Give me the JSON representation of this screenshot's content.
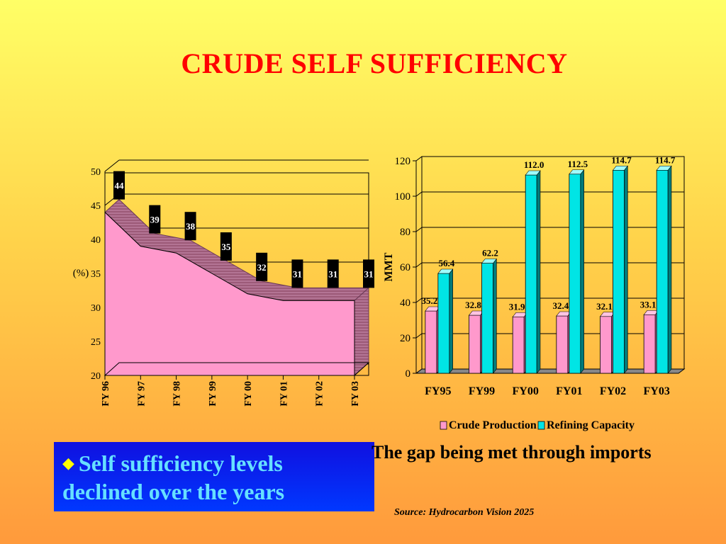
{
  "title": "CRUDE SELF SUFFICIENCY",
  "callout": {
    "bullet": "◆",
    "text": "Self sufficiency levels declined over the years"
  },
  "gap_note": "The gap being met through imports",
  "source": "Source: Hydrocarbon Vision 2025",
  "colors": {
    "title": "#ff0000",
    "area_fill": "#ff99cc",
    "area_band": "#9c5a78",
    "label_box": "#000000",
    "crude": "#ff99cc",
    "refining": "#00e5e5",
    "callout_bg": "#1010e0",
    "callout_text": "#66e0ff"
  },
  "chart_data": [
    {
      "type": "area",
      "ylabel": "(%)",
      "categories": [
        "FY 96",
        "FY 97",
        "FY 98",
        "FY 99",
        "FY 00",
        "FY 01",
        "FY 02",
        "FY 03"
      ],
      "values": [
        44,
        39,
        38,
        35,
        32,
        31,
        31,
        31
      ],
      "data_labels": [
        "44",
        "39",
        "38",
        "35",
        "32",
        "31",
        "31",
        "31"
      ],
      "yticks": [
        "20",
        "25",
        "30",
        "35",
        "40",
        "45",
        "50"
      ],
      "ylim": [
        20,
        50
      ],
      "grid": true,
      "style": "3d"
    },
    {
      "type": "bar",
      "ylabel": "MMT",
      "categories": [
        "FY95",
        "FY99",
        "FY00",
        "FY01",
        "FY02",
        "FY03"
      ],
      "series": [
        {
          "name": "Crude Production",
          "values": [
            35.2,
            32.8,
            31.9,
            32.4,
            32.1,
            33.1
          ],
          "labels": [
            "35.2",
            "32.8",
            "31.9",
            "32.4",
            "32.1",
            "33.1"
          ]
        },
        {
          "name": "Refining Capacity",
          "values": [
            56.4,
            62.2,
            112.0,
            112.5,
            114.7,
            114.7
          ],
          "labels": [
            "56.4",
            "62.2",
            "112.0",
            "112.5",
            "114.7",
            "114.7"
          ]
        }
      ],
      "yticks": [
        "0",
        "20",
        "40",
        "60",
        "80",
        "100",
        "120"
      ],
      "ylim": [
        0,
        120
      ],
      "grid": true,
      "legend": "bottom",
      "style": "3d"
    }
  ]
}
